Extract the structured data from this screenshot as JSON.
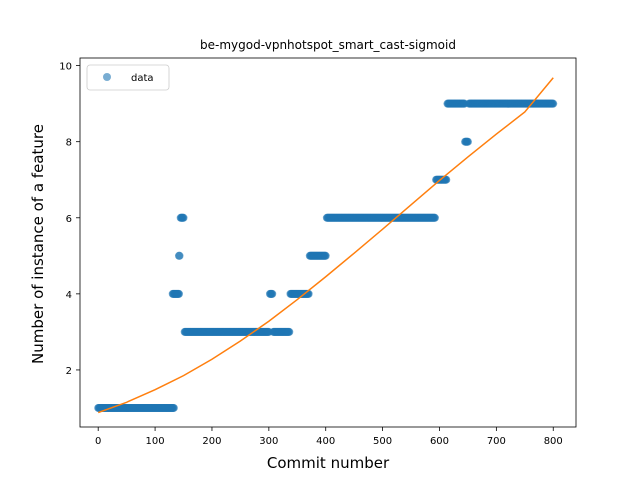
{
  "chart_data": {
    "type": "scatter",
    "title": "be-mygod-vpnhotspot_smart_cast-sigmoid",
    "xlabel": "Commit number",
    "ylabel": "Number of instance of a feature",
    "xlim": [
      -32,
      840
    ],
    "ylim": [
      0.5,
      10.2
    ],
    "xticks": [
      0,
      100,
      200,
      300,
      400,
      500,
      600,
      700,
      800
    ],
    "yticks": [
      2,
      4,
      6,
      8,
      10
    ],
    "legend": {
      "position": "top-left",
      "entries": [
        "data"
      ]
    },
    "grid": false,
    "colors": {
      "data": "#1f77b4",
      "fit": "#ff7f0e"
    },
    "series": [
      {
        "name": "data",
        "kind": "scatter",
        "segments": [
          {
            "x_start": 0,
            "x_end": 133,
            "y": 1
          },
          {
            "x_start": 131,
            "x_end": 142,
            "y": 4
          },
          {
            "x_start": 142,
            "x_end": 143,
            "y": 5
          },
          {
            "x_start": 145,
            "x_end": 150,
            "y": 6
          },
          {
            "x_start": 152,
            "x_end": 300,
            "y": 3
          },
          {
            "x_start": 302,
            "x_end": 306,
            "y": 4
          },
          {
            "x_start": 308,
            "x_end": 336,
            "y": 3
          },
          {
            "x_start": 338,
            "x_end": 370,
            "y": 4
          },
          {
            "x_start": 372,
            "x_end": 400,
            "y": 5
          },
          {
            "x_start": 402,
            "x_end": 592,
            "y": 6
          },
          {
            "x_start": 594,
            "x_end": 612,
            "y": 7
          },
          {
            "x_start": 614,
            "x_end": 644,
            "y": 9
          },
          {
            "x_start": 645,
            "x_end": 650,
            "y": 8
          },
          {
            "x_start": 652,
            "x_end": 800,
            "y": 9
          }
        ]
      },
      {
        "kind": "line",
        "x": [
          0,
          50,
          100,
          150,
          200,
          250,
          300,
          350,
          400,
          450,
          500,
          550,
          600,
          650,
          700,
          750,
          800
        ],
        "y": [
          0.88,
          1.15,
          1.48,
          1.85,
          2.28,
          2.76,
          3.28,
          3.85,
          4.45,
          5.07,
          5.7,
          6.34,
          6.98,
          7.6,
          8.2,
          8.78,
          9.68
        ]
      }
    ]
  }
}
